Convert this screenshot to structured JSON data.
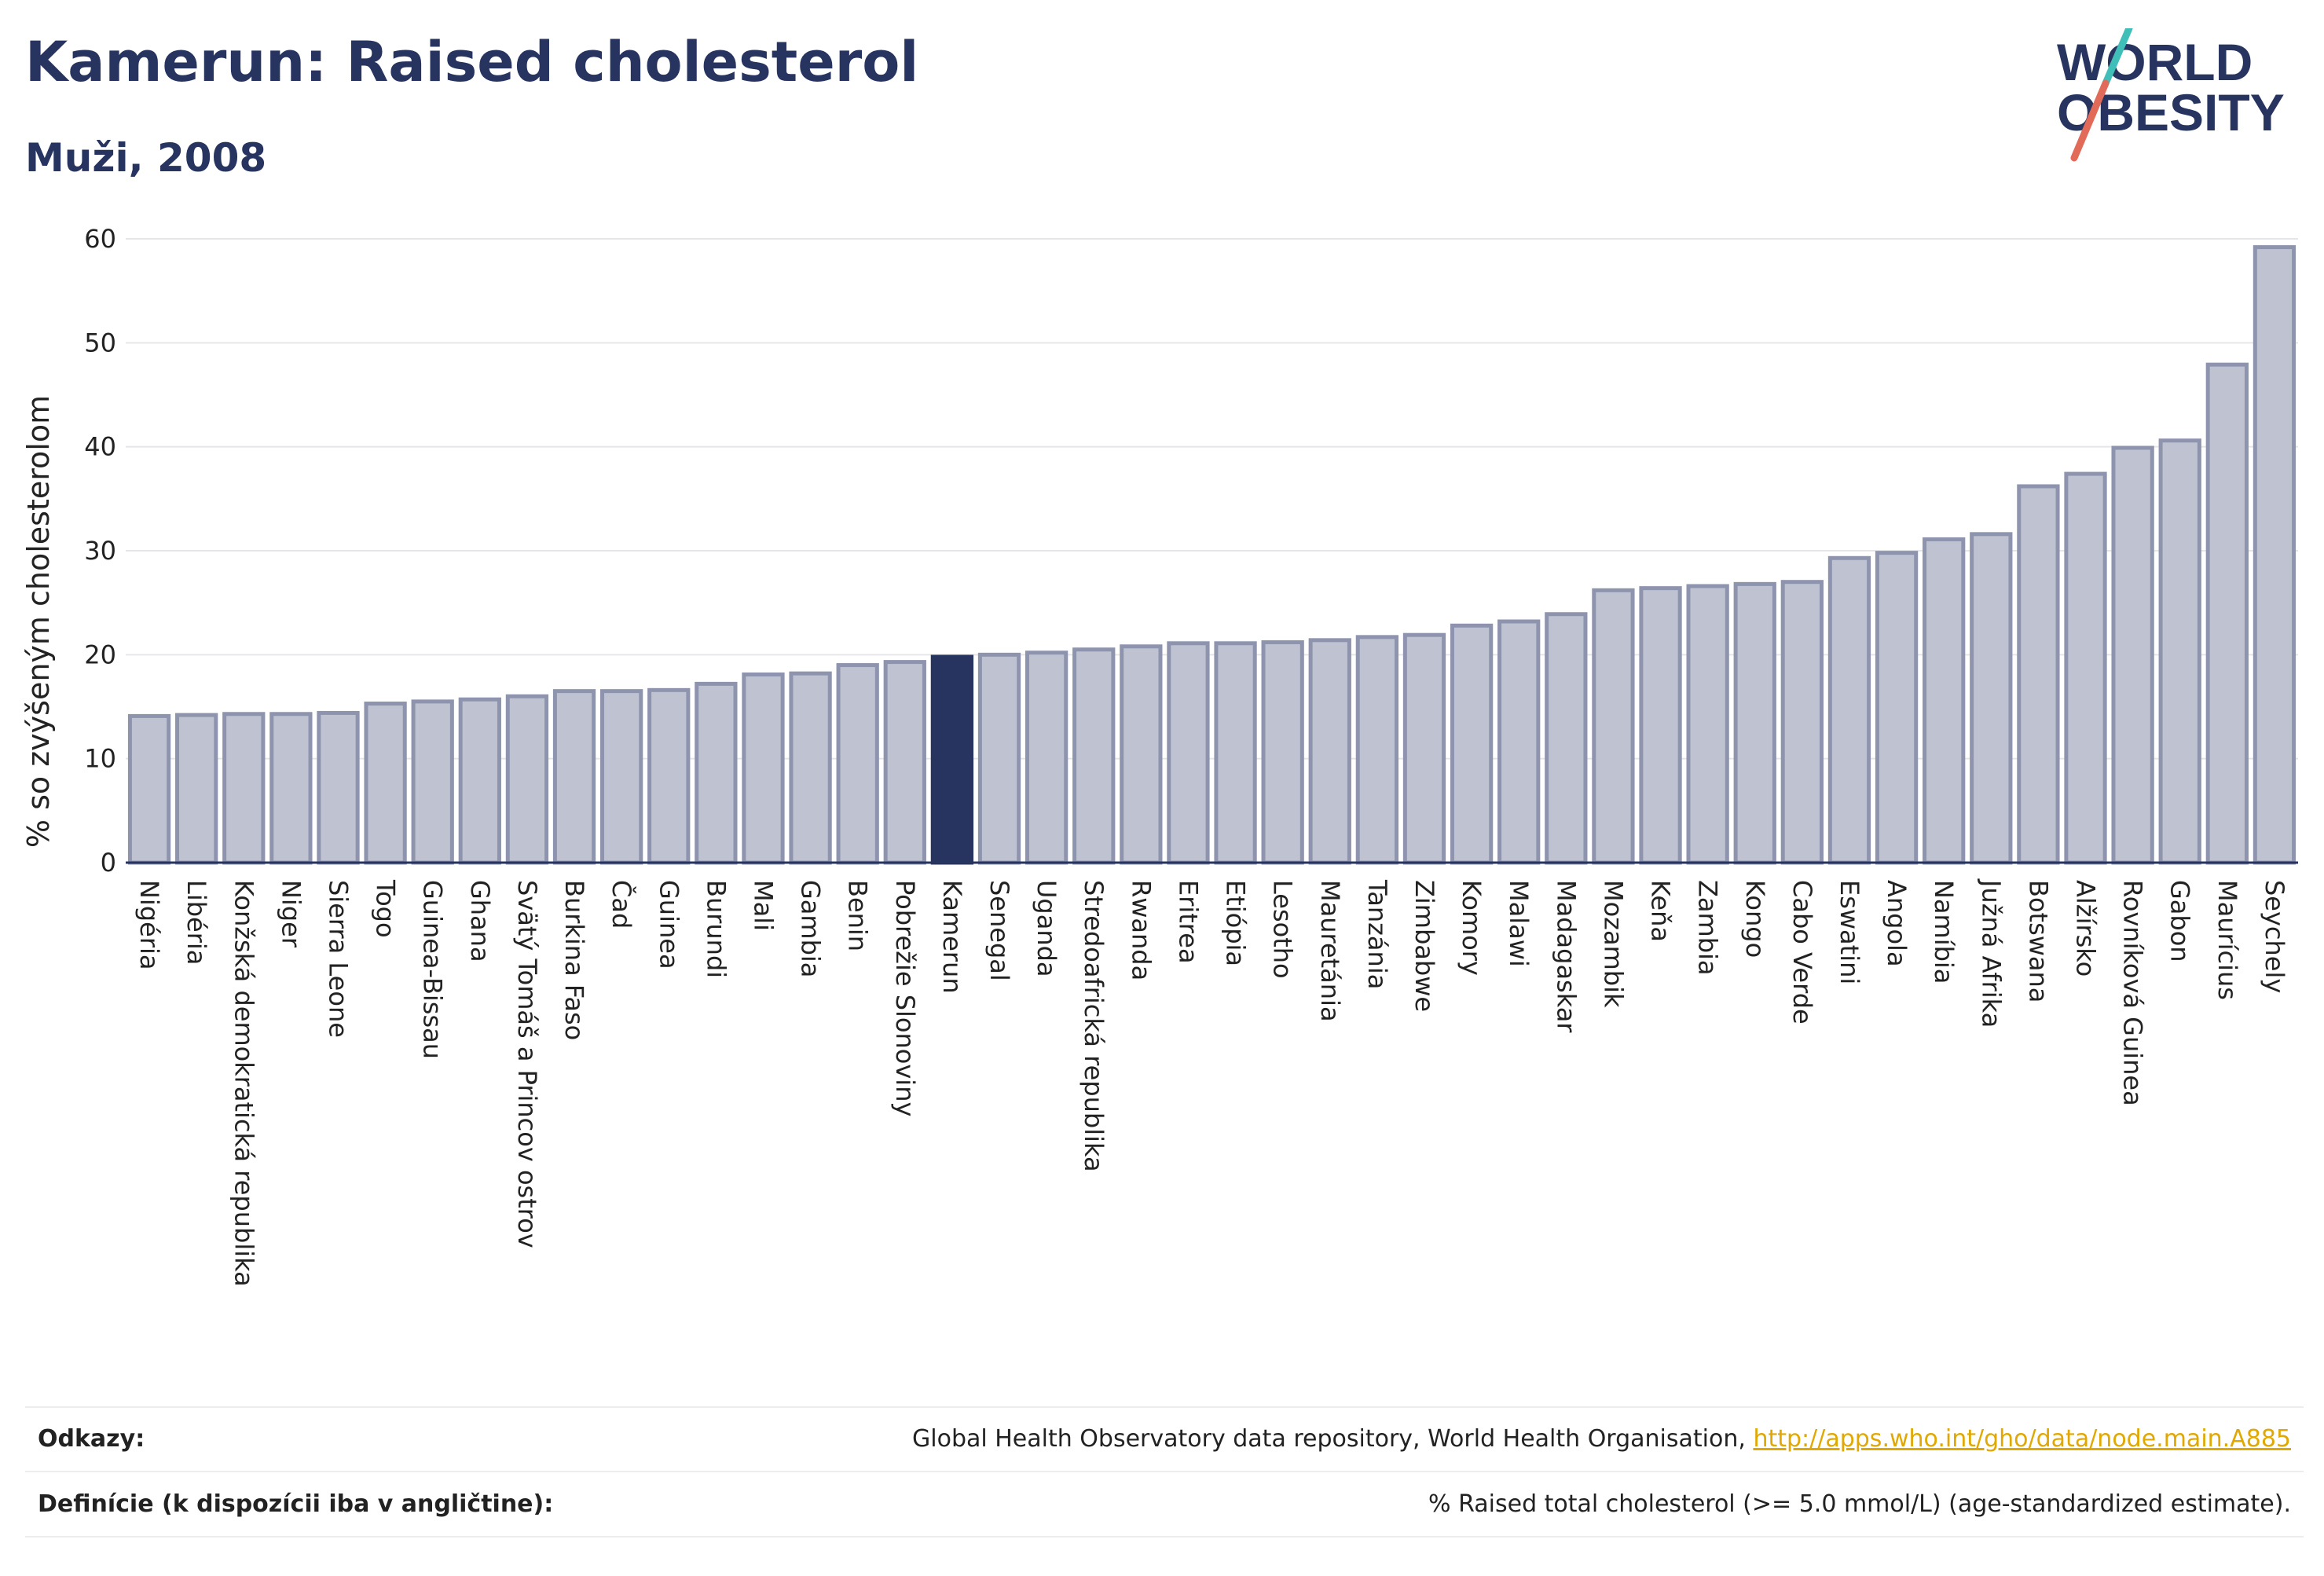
{
  "header": {
    "title": "Kamerun: Raised cholesterol",
    "subtitle": "Muži, 2008"
  },
  "logo": {
    "line1": "WORLD",
    "line2": "OBESITY"
  },
  "colors": {
    "bar": "#bfc2d0",
    "bar_stroke": "#8e94ae",
    "highlight": "#283460",
    "grid": "#e6e6ea"
  },
  "chart_data": {
    "type": "bar",
    "title": "Kamerun: Raised cholesterol",
    "subtitle": "Muži, 2008",
    "xlabel": "",
    "ylabel": "% so zvýšeným cholesterolom",
    "ylim": [
      0,
      60
    ],
    "yticks": [
      0,
      10,
      20,
      30,
      40,
      50,
      60
    ],
    "grid": true,
    "highlight": "Kamerun",
    "categories": [
      "Nigéria",
      "Libéria",
      "Konžská demokratická republika",
      "Niger",
      "Sierra Leone",
      "Togo",
      "Guinea-Bissau",
      "Ghana",
      "Svätý Tomáš a Princov ostrov",
      "Burkina Faso",
      "Čad",
      "Guinea",
      "Burundi",
      "Mali",
      "Gambia",
      "Benin",
      "Pobrežie Slonoviny",
      "Kamerun",
      "Senegal",
      "Uganda",
      "Stredoafrická republika",
      "Rwanda",
      "Eritrea",
      "Etiópia",
      "Lesotho",
      "Mauretánia",
      "Tanzánia",
      "Zimbabwe",
      "Komory",
      "Malawi",
      "Madagaskar",
      "Mozambik",
      "Keňa",
      "Zambia",
      "Kongo",
      "Cabo Verde",
      "Eswatini",
      "Angola",
      "Namíbia",
      "Južná Afrika",
      "Botswana",
      "Alžírsko",
      "Rovníková Guinea",
      "Gabon",
      "Maurícius",
      "Seychely"
    ],
    "values": [
      14.1,
      14.2,
      14.3,
      14.3,
      14.4,
      15.3,
      15.5,
      15.7,
      16.0,
      16.5,
      16.5,
      16.6,
      17.2,
      18.1,
      18.2,
      19.0,
      19.3,
      19.8,
      20.0,
      20.2,
      20.5,
      20.8,
      21.1,
      21.1,
      21.2,
      21.4,
      21.7,
      21.9,
      22.8,
      23.2,
      23.9,
      26.2,
      26.4,
      26.6,
      26.8,
      27.0,
      29.3,
      29.8,
      31.1,
      31.6,
      36.2,
      37.4,
      39.9,
      40.6,
      47.9,
      59.2
    ]
  },
  "footer": {
    "references_label": "Odkazy:",
    "references_text": "Global Health Observatory data repository, World Health Organisation, ",
    "references_link": "http://apps.who.int/gho/data/node.main.A885",
    "definitions_label": "Definície (k dispozícii iba v angličtine):",
    "definitions_text": "% Raised total cholesterol (>= 5.0 mmol/L) (age-standardized estimate)."
  }
}
